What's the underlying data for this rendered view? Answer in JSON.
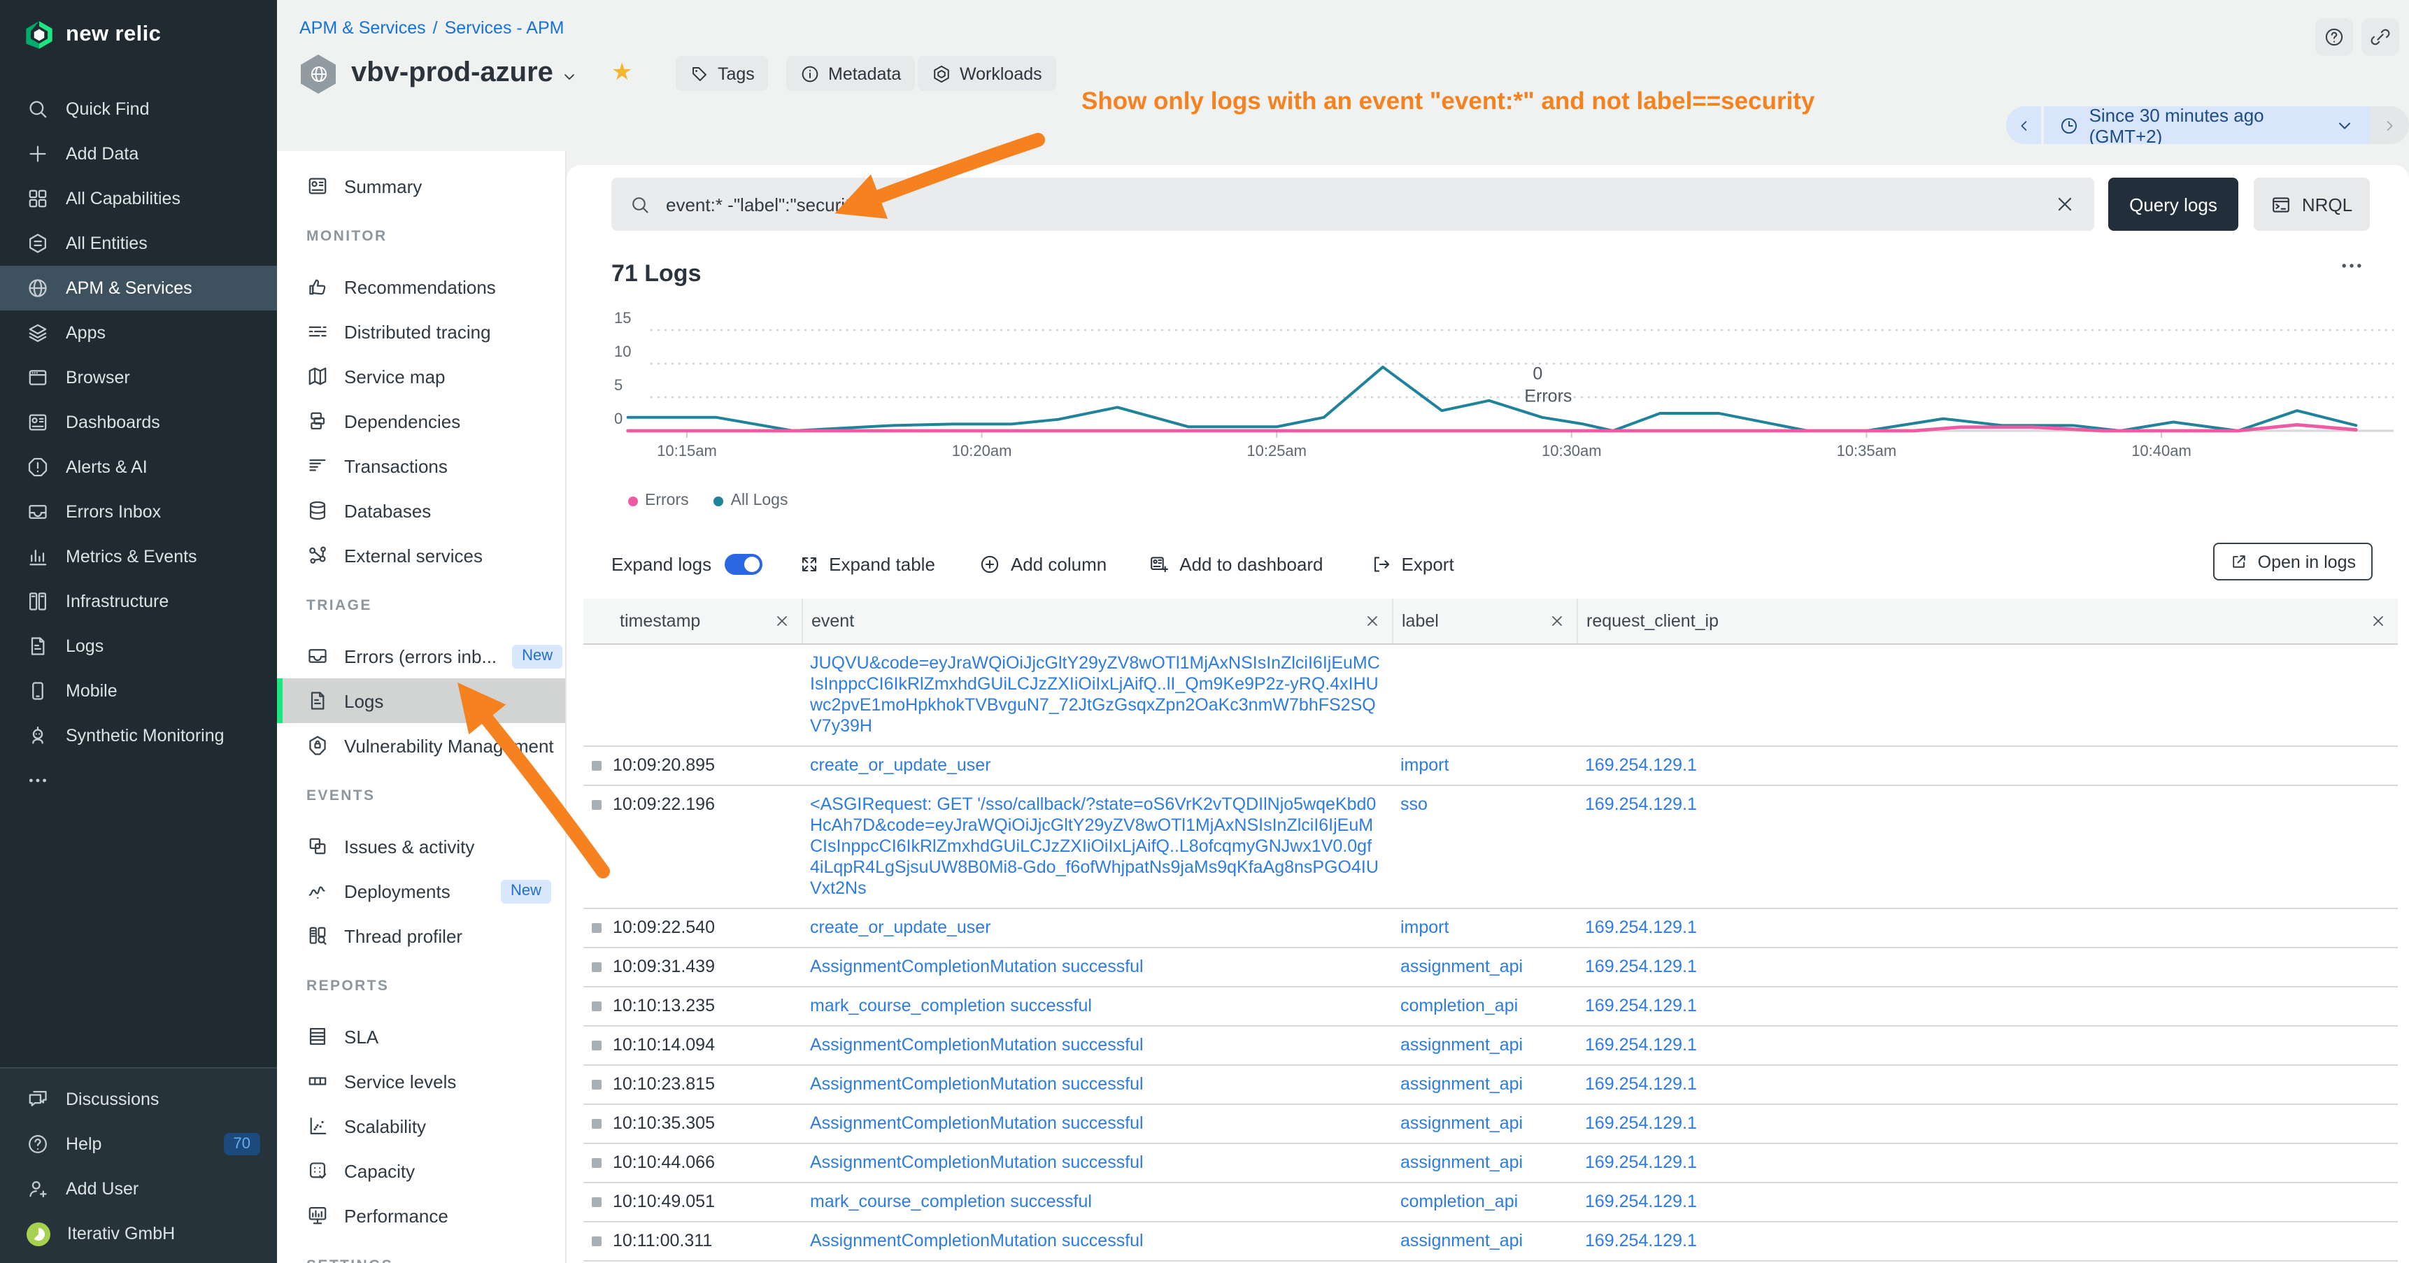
{
  "brand": {
    "name": "new relic"
  },
  "sidebar": {
    "items": [
      {
        "icon": "search",
        "label": "Quick Find"
      },
      {
        "icon": "plus",
        "label": "Add Data"
      },
      {
        "icon": "grid",
        "label": "All Capabilities"
      },
      {
        "icon": "entities",
        "label": "All Entities"
      },
      {
        "icon": "globe",
        "label": "APM & Services",
        "selected": true
      },
      {
        "icon": "layers",
        "label": "Apps"
      },
      {
        "icon": "browser",
        "label": "Browser"
      },
      {
        "icon": "dashboard",
        "label": "Dashboards"
      },
      {
        "icon": "alert",
        "label": "Alerts & AI"
      },
      {
        "icon": "inbox",
        "label": "Errors Inbox"
      },
      {
        "icon": "metrics",
        "label": "Metrics & Events"
      },
      {
        "icon": "infra",
        "label": "Infrastructure"
      },
      {
        "icon": "doc",
        "label": "Logs"
      },
      {
        "icon": "mobile",
        "label": "Mobile"
      },
      {
        "icon": "robot",
        "label": "Synthetic Monitoring"
      },
      {
        "icon": "dots",
        "label": ""
      }
    ],
    "footer": [
      {
        "icon": "chat",
        "label": "Discussions"
      },
      {
        "icon": "help",
        "label": "Help",
        "badge": "70"
      },
      {
        "icon": "userplus",
        "label": "Add User"
      },
      {
        "icon": "avatar",
        "label": "Iterativ GmbH"
      }
    ]
  },
  "subnav": {
    "sections": [
      {
        "title": "",
        "items": [
          {
            "icon": "dashboard",
            "label": "Summary"
          }
        ]
      },
      {
        "title": "MONITOR",
        "items": [
          {
            "icon": "thumb",
            "label": "Recommendations"
          },
          {
            "icon": "tracing",
            "label": "Distributed tracing"
          },
          {
            "icon": "map",
            "label": "Service map"
          },
          {
            "icon": "depend",
            "label": "Dependencies"
          },
          {
            "icon": "transactions",
            "label": "Transactions"
          },
          {
            "icon": "db",
            "label": "Databases"
          },
          {
            "icon": "ext",
            "label": "External services"
          }
        ]
      },
      {
        "title": "TRIAGE",
        "items": [
          {
            "icon": "inbox",
            "label": "Errors (errors inb...",
            "badge": "New"
          },
          {
            "icon": "doc",
            "label": "Logs",
            "selected": true
          },
          {
            "icon": "vuln",
            "label": "Vulnerability Management"
          }
        ]
      },
      {
        "title": "EVENTS",
        "items": [
          {
            "icon": "issues",
            "label": "Issues & activity"
          },
          {
            "icon": "deploy",
            "label": "Deployments",
            "badge": "New"
          },
          {
            "icon": "thread",
            "label": "Thread profiler"
          }
        ]
      },
      {
        "title": "REPORTS",
        "items": [
          {
            "icon": "sla",
            "label": "SLA"
          },
          {
            "icon": "slevels",
            "label": "Service levels"
          },
          {
            "icon": "scal",
            "label": "Scalability"
          },
          {
            "icon": "capacity",
            "label": "Capacity"
          },
          {
            "icon": "perf",
            "label": "Performance"
          }
        ]
      },
      {
        "title": "SETTINGS",
        "items": []
      }
    ]
  },
  "header": {
    "breadcrumb": {
      "part1": "APM & Services",
      "separator": "/",
      "part2": "Services - APM"
    },
    "entity_name": "vbv-prod-azure",
    "buttons": {
      "tags": "Tags",
      "metadata": "Metadata",
      "workloads": "Workloads"
    },
    "annotation": "Show only logs with an event \"event:*\" and not label==security",
    "time_label": "Since 30 minutes ago (GMT+2)"
  },
  "query_bar": {
    "query": "event:* -\"label\":\"security\"",
    "query_button": "Query logs",
    "nrql_button": "NRQL"
  },
  "logs": {
    "count_title": "71 Logs",
    "toolbar": {
      "expand_logs": "Expand logs",
      "expand_table": "Expand table",
      "add_column": "Add column",
      "add_to_dashboard": "Add to dashboard",
      "export": "Export",
      "open_in_logs": "Open in logs"
    }
  },
  "chart_data": {
    "type": "line",
    "title": "71 Logs",
    "origin_time": "10:14am",
    "x_unit": "minutes after 10:14am",
    "xlim": [
      0,
      30.3
    ],
    "ylim": [
      0,
      16
    ],
    "yticks": [
      0,
      5,
      10,
      15
    ],
    "grid": "dotted horizontal",
    "x_ticks": [
      {
        "t": 1,
        "label": "10:15am"
      },
      {
        "t": 6,
        "label": "10:20am"
      },
      {
        "t": 11,
        "label": "10:25am"
      },
      {
        "t": 16,
        "label": "10:30am"
      },
      {
        "t": 21,
        "label": "10:35am"
      },
      {
        "t": 26,
        "label": "10:40am"
      }
    ],
    "annotation": {
      "line1": "0",
      "line2": "Errors",
      "x_minute": 15.2,
      "y_value": 6
    },
    "legend_position": "bottom-left",
    "legend": [
      {
        "label": "Errors",
        "color": "#ef5aa2"
      },
      {
        "label": "All Logs",
        "color": "#1f8399"
      }
    ],
    "series": [
      {
        "name": "All Logs",
        "color": "#1f8399",
        "points": [
          [
            0,
            2
          ],
          [
            1.5,
            2
          ],
          [
            2.8,
            0
          ],
          [
            4.5,
            0.8
          ],
          [
            5.5,
            1
          ],
          [
            6.5,
            1
          ],
          [
            7.3,
            1.7
          ],
          [
            8.3,
            3.5
          ],
          [
            9.5,
            0.6
          ],
          [
            11,
            0.6
          ],
          [
            11.8,
            2
          ],
          [
            12.8,
            9.5
          ],
          [
            13.8,
            3
          ],
          [
            14.6,
            4.5
          ],
          [
            15.5,
            2
          ],
          [
            16.2,
            1
          ],
          [
            16.7,
            0
          ],
          [
            17.5,
            2.6
          ],
          [
            18.5,
            2.6
          ],
          [
            20,
            0
          ],
          [
            21,
            0
          ],
          [
            22.3,
            1.8
          ],
          [
            23.3,
            0.8
          ],
          [
            24.5,
            0.8
          ],
          [
            25.3,
            0
          ],
          [
            26.2,
            1.3
          ],
          [
            27.3,
            0
          ],
          [
            28.3,
            3
          ],
          [
            29.3,
            0.8
          ]
        ]
      },
      {
        "name": "Errors",
        "color": "#ef5aa2",
        "points": [
          [
            0,
            0
          ],
          [
            21.8,
            0
          ],
          [
            22.6,
            0.55
          ],
          [
            23.8,
            0.55
          ],
          [
            25,
            0
          ],
          [
            27.3,
            0
          ],
          [
            28.3,
            0.9
          ],
          [
            29.3,
            0.15
          ]
        ]
      }
    ]
  },
  "table": {
    "columns": [
      "timestamp",
      "event",
      "label",
      "request_client_ip"
    ],
    "rows": [
      {
        "continuation": true,
        "timestamp": "",
        "event": "JUQVU&code=eyJraWQiOiJjcGltY29yZV8wOTl1MjAxNSIsInZlciI6IjEuMCIsInppcCI6IkRlZmxhdGUiLCJzZXIiOiIxLjAifQ..lI_Qm9Ke9P2z-yRQ.4xIHUwc2pvE1moHpkhokTVBvguN7_72JtGzGsqxZpn2OaKc3nmW7bhFS2SQV7y39H",
        "label": "",
        "request_client_ip": ""
      },
      {
        "timestamp": "10:09:20.895",
        "event": "create_or_update_user",
        "label": "import",
        "request_client_ip": "169.254.129.1"
      },
      {
        "timestamp": "10:09:22.196",
        "event": "<ASGIRequest: GET '/sso/callback/?state=oS6VrK2vTQDIlNjo5wqeKbd0HcAh7D&code=eyJraWQiOiJjcGltY29yZV8wOTl1MjAxNSIsInZlciI6IjEuMCIsInppcCI6IkRlZmxhdGUiLCJzZXIiOiIxLjAifQ..L8ofcqmyGNJwx1V0.0gf4iLqpR4LgSjsuUW8B0Mi8-Gdo_f6ofWhjpatNs9jaMs9qKfaAg8nsPGO4IUVxt2Ns",
        "label": "sso",
        "request_client_ip": "169.254.129.1"
      },
      {
        "timestamp": "10:09:22.540",
        "event": "create_or_update_user",
        "label": "import",
        "request_client_ip": "169.254.129.1"
      },
      {
        "timestamp": "10:09:31.439",
        "event": "AssignmentCompletionMutation successful",
        "label": "assignment_api",
        "request_client_ip": "169.254.129.1"
      },
      {
        "timestamp": "10:10:13.235",
        "event": "mark_course_completion successful",
        "label": "completion_api",
        "request_client_ip": "169.254.129.1"
      },
      {
        "timestamp": "10:10:14.094",
        "event": "AssignmentCompletionMutation successful",
        "label": "assignment_api",
        "request_client_ip": "169.254.129.1"
      },
      {
        "timestamp": "10:10:23.815",
        "event": "AssignmentCompletionMutation successful",
        "label": "assignment_api",
        "request_client_ip": "169.254.129.1"
      },
      {
        "timestamp": "10:10:35.305",
        "event": "AssignmentCompletionMutation successful",
        "label": "assignment_api",
        "request_client_ip": "169.254.129.1"
      },
      {
        "timestamp": "10:10:44.066",
        "event": "AssignmentCompletionMutation successful",
        "label": "assignment_api",
        "request_client_ip": "169.254.129.1"
      },
      {
        "timestamp": "10:10:49.051",
        "event": "mark_course_completion successful",
        "label": "completion_api",
        "request_client_ip": "169.254.129.1"
      },
      {
        "timestamp": "10:11:00.311",
        "event": "AssignmentCompletionMutation successful",
        "label": "assignment_api",
        "request_client_ip": "169.254.129.1"
      }
    ]
  }
}
